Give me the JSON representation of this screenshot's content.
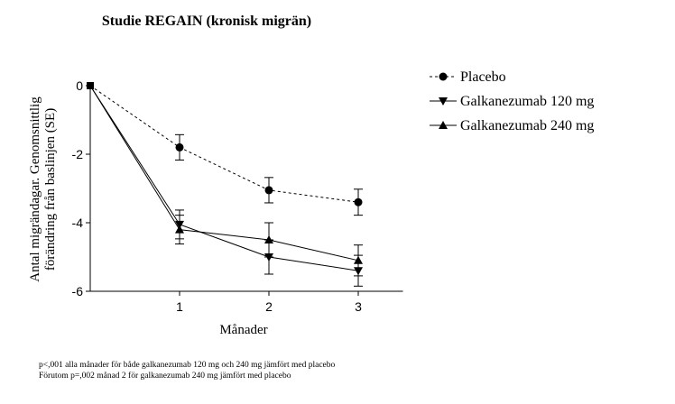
{
  "chart_data": {
    "type": "line",
    "title": "Studie REGAIN (kronisk migrän)",
    "xlabel": "Månader",
    "ylabel": [
      "Antal migrändagar. Genomsnittlig",
      "förändring från baslinjen (SE)"
    ],
    "x": [
      0,
      1,
      2,
      3
    ],
    "xticks": [
      "1",
      "2",
      "3"
    ],
    "xtick_values": [
      1,
      2,
      3
    ],
    "xlim": [
      0,
      3.5
    ],
    "ylim": [
      -6,
      0
    ],
    "yticks": [
      "0",
      "-2",
      "-4",
      "-6"
    ],
    "ytick_values": [
      0,
      -2,
      -4,
      -6
    ],
    "grid": false,
    "legend_position": "right",
    "series": [
      {
        "name": "Placebo",
        "marker": "circle",
        "line": "dashed",
        "values": [
          0,
          -1.8,
          -3.05,
          -3.4
        ],
        "se": [
          0,
          0.37,
          0.37,
          0.38
        ]
      },
      {
        "name": "Galkanezumab 120 mg",
        "marker": "triangle-down",
        "line": "solid",
        "values": [
          0,
          -4.05,
          -5.0,
          -5.4
        ],
        "se": [
          0,
          0.42,
          0.5,
          0.45
        ]
      },
      {
        "name": "Galkanezumab 240 mg",
        "marker": "triangle-up",
        "line": "solid",
        "values": [
          0,
          -4.2,
          -4.5,
          -5.1
        ],
        "se": [
          0,
          0.42,
          0.5,
          0.45
        ]
      }
    ],
    "color": "#000000"
  },
  "footnotes": [
    "p<,001 alla månader för både galkanezumab 120 mg och 240 mg jämfört med placebo",
    "Förutom p=,002 månad 2 för galkanezumab 240 mg jämfört med placebo"
  ]
}
